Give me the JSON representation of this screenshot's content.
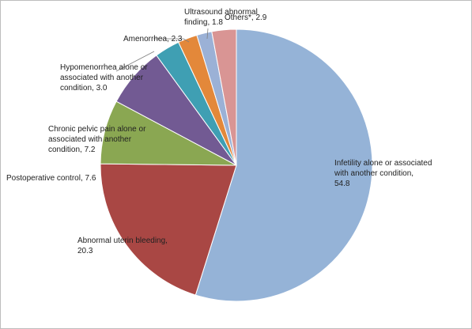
{
  "chart_data": {
    "type": "pie",
    "title": "",
    "slices": [
      {
        "label": "Infetility alone or associated with another condition",
        "value": 54.8,
        "color": "#95b3d7"
      },
      {
        "label": "Abnormal uterin bleeding",
        "value": 20.3,
        "color": "#a94744"
      },
      {
        "label": "Postoperative control",
        "value": 7.6,
        "color": "#8aa752"
      },
      {
        "label": "Chronic pelvic pain alone or associated with another condition",
        "value": 7.2,
        "color": "#725a93"
      },
      {
        "label": "Hypomenorrhea alone or associated with another condition",
        "value": 3.0,
        "color": "#3f9fb3"
      },
      {
        "label": "Amenorrhea",
        "value": 2.3,
        "color": "#e3883a"
      },
      {
        "label": "Ultrasound abnormal finding",
        "value": 1.8,
        "color": "#9bb1d6"
      },
      {
        "label": "Others*",
        "value": 2.9,
        "color": "#d99594"
      }
    ]
  },
  "labels": {
    "infertility": [
      "Infetility alone or associated",
      "with another condition,",
      "54.8"
    ],
    "aub": [
      "Abnormal uterin bleeding,",
      "20.3"
    ],
    "postop": [
      "Postoperative control, 7.6"
    ],
    "pelvic": [
      "Chronic pelvic pain alone or",
      "associated with another",
      "condition, 7.2"
    ],
    "hypo": [
      "Hypomenorrhea alone or",
      "associated with another",
      "condition, 3.0"
    ],
    "amen": [
      "Amenorrhea, 2.3"
    ],
    "ultra": [
      "Ultrasound abnormal",
      "finding, 1.8"
    ],
    "others": [
      "Others*, 2.9"
    ]
  }
}
